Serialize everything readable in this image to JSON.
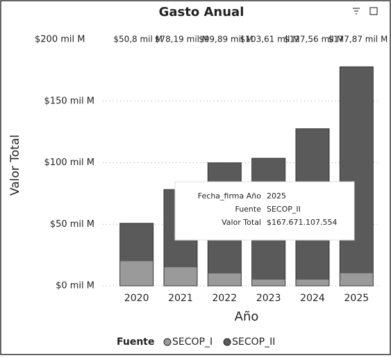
{
  "chart_data": {
    "type": "bar",
    "stacked": true,
    "title": "Gasto Anual",
    "x_label": "Año",
    "y_label": "Valor Total",
    "categories": [
      "2020",
      "2021",
      "2022",
      "2023",
      "2024",
      "2025"
    ],
    "series": [
      {
        "name": "SECOP_I",
        "color": "#9a9a9a",
        "values": [
          20,
          15,
          10,
          5,
          5,
          10.2
        ]
      },
      {
        "name": "SECOP_II",
        "color": "#5a5a5a",
        "values": [
          30.8,
          63.19,
          89.89,
          98.61,
          122.56,
          167.67
        ]
      }
    ],
    "totals": [
      50.8,
      78.19,
      99.89,
      103.61,
      127.56,
      177.87
    ],
    "total_labels": [
      "$50,8 mil M",
      "$78,19 mil M",
      "$99,89 mil M",
      "$103,61 mil M",
      "$127,56 mil M",
      "$177,87 mil M"
    ],
    "ylim": [
      0,
      200
    ],
    "yticks": [
      {
        "value": 0,
        "label": "$0 mil M"
      },
      {
        "value": 50,
        "label": "$50 mil M"
      },
      {
        "value": 100,
        "label": "$100 mil M"
      },
      {
        "value": 150,
        "label": "$150 mil M"
      },
      {
        "value": 200,
        "label": "$200 mil M"
      }
    ],
    "grid": true,
    "legend_title": "Fuente",
    "legend_position": "bottom",
    "tooltip": {
      "rows": [
        [
          "Fecha_firma Año",
          "2025"
        ],
        [
          "Fuente",
          "SECOP_II"
        ],
        [
          "Valor Total",
          "$167.671.107.554"
        ]
      ]
    }
  }
}
